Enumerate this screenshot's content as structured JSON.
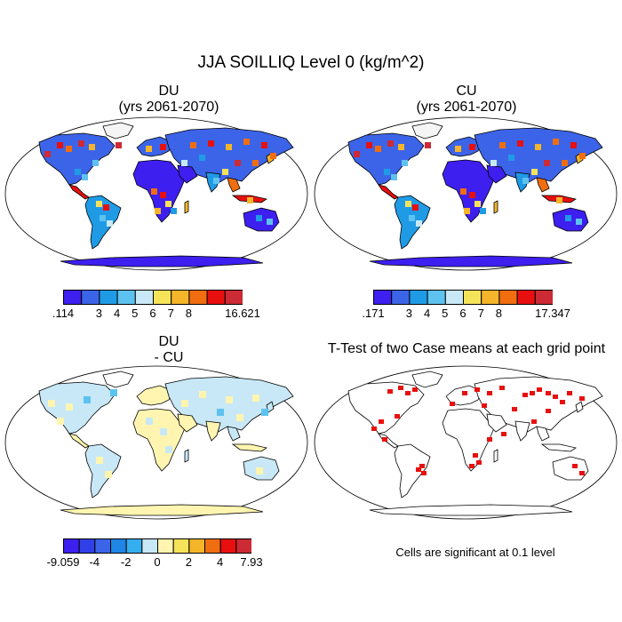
{
  "figure_title": "JJA SOILLIQ Level 0 (kg/m^2)",
  "chart_data": [
    {
      "type": "heatmap",
      "panel": "top-left",
      "title_line1": "DU",
      "title_line2": "(yrs 2061-2070)",
      "colorbar": {
        "colors": [
          "#3d1ff0",
          "#3c64e8",
          "#1f9be6",
          "#5ec2f0",
          "#c8e8f7",
          "#f5e35a",
          "#f5b52a",
          "#f06e10",
          "#e80f0f",
          "#cc2a35"
        ],
        "tick_labels": [
          ".114",
          "3",
          "4",
          "5",
          "6",
          "7",
          "8",
          "16.621"
        ],
        "tick_slots": [
          0,
          2,
          3,
          4,
          5,
          6,
          7,
          10
        ],
        "min": 0.114,
        "max": 16.621
      }
    },
    {
      "type": "heatmap",
      "panel": "top-right",
      "title_line1": "CU",
      "title_line2": "(yrs 2061-2070)",
      "colorbar": {
        "colors": [
          "#3d1ff0",
          "#3c64e8",
          "#1f9be6",
          "#5ec2f0",
          "#c8e8f7",
          "#f5e35a",
          "#f5b52a",
          "#f06e10",
          "#e80f0f",
          "#cc2a35"
        ],
        "tick_labels": [
          ".171",
          "3",
          "4",
          "5",
          "6",
          "7",
          "8",
          "17.347"
        ],
        "tick_slots": [
          0,
          2,
          3,
          4,
          5,
          6,
          7,
          10
        ],
        "min": 0.171,
        "max": 17.347
      }
    },
    {
      "type": "heatmap",
      "panel": "bottom-left",
      "title_line1": "DU",
      "title_line2": "- CU",
      "colorbar": {
        "colors": [
          "#3d1ff0",
          "#3040e8",
          "#3c64e8",
          "#1f86e6",
          "#35aef0",
          "#c8e8f7",
          "#fff5b0",
          "#f5e35a",
          "#f5b52a",
          "#f06e10",
          "#e80f0f",
          "#cc2a35"
        ],
        "tick_labels": [
          "-9.059",
          "-4",
          "-2",
          "0",
          "2",
          "4",
          "7.93"
        ],
        "tick_slots": [
          0,
          2,
          4,
          6,
          8,
          10,
          12
        ],
        "min": -9.059,
        "max": 7.93
      }
    },
    {
      "type": "heatmap",
      "panel": "bottom-right",
      "title_line1": "T-Test of two Case means at each grid point",
      "note": "Cells are significant at 0.1 level"
    }
  ]
}
